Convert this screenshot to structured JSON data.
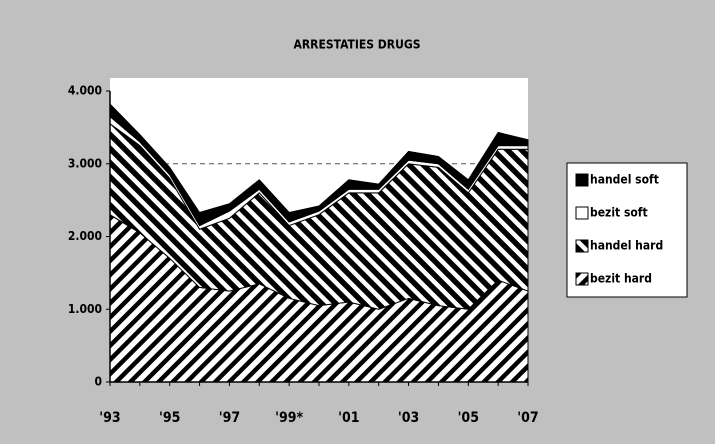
{
  "chart_data": {
    "type": "stacked-area",
    "title": "ARRESTATIES DRUGS",
    "categories": [
      "'93",
      null,
      "'95",
      null,
      "'97",
      null,
      "'99*",
      null,
      "'01",
      null,
      "'03",
      null,
      "'05",
      null,
      "'07"
    ],
    "series": [
      {
        "name": "bezit hard",
        "color": "#000000",
        "values": [
          2300,
          2050,
          1700,
          1300,
          1250,
          1350,
          1150,
          1050,
          1100,
          1000,
          1150,
          1050,
          1000,
          1400,
          1250
        ]
      },
      {
        "name": "handel hard",
        "color": "#000000",
        "values": [
          1250,
          1200,
          1100,
          800,
          1000,
          1250,
          1000,
          1250,
          1500,
          1600,
          1850,
          1900,
          1600,
          1800,
          1950
        ]
      },
      {
        "name": "bezit soft",
        "color": "#ffffff",
        "values": [
          100,
          50,
          50,
          50,
          100,
          50,
          50,
          50,
          50,
          50,
          50,
          50,
          50,
          50,
          50
        ]
      },
      {
        "name": "handel soft",
        "color": "#000000",
        "values": [
          170,
          100,
          100,
          180,
          100,
          130,
          130,
          70,
          130,
          70,
          120,
          100,
          130,
          180,
          80
        ]
      }
    ],
    "ylim": [
      0,
      4000
    ],
    "yticks": [
      0,
      {
        "value": 1000,
        "label": "1.000"
      },
      {
        "value": 2000,
        "label": "2.000"
      },
      {
        "value": 3000,
        "label": "3.000"
      },
      {
        "value": 4000,
        "label": "4.000"
      }
    ],
    "grid": true
  }
}
